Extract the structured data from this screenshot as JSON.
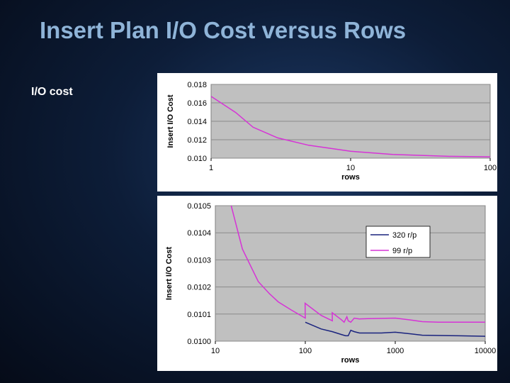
{
  "slide": {
    "title": "Insert Plan I/O Cost versus Rows",
    "bullet": "I/O cost"
  },
  "colors": {
    "plot_bg": "#c0c0c0",
    "series_320": "#1a237e",
    "series_99": "#d633d6",
    "title": "#8fb4d8"
  },
  "chart_data": [
    {
      "type": "line",
      "xscale": "log",
      "xlabel": "rows",
      "ylabel": "Insert I/O Cost",
      "xlim": [
        1,
        100
      ],
      "ylim": [
        0.01,
        0.018
      ],
      "xticks": [
        "1",
        "10",
        "100"
      ],
      "xtick_values": [
        1,
        10,
        100
      ],
      "yticks": [
        "0.010",
        "0.012",
        "0.014",
        "0.016",
        "0.018"
      ],
      "ytick_values": [
        0.01,
        0.012,
        0.014,
        0.016,
        0.018
      ],
      "grid": true,
      "legend": "none",
      "series": [
        {
          "color": "#d633d6",
          "x": [
            1,
            1.5,
            2,
            3,
            5,
            10,
            20,
            50,
            100
          ],
          "y": [
            0.0167,
            0.01495,
            0.01335,
            0.0122,
            0.0114,
            0.01075,
            0.0104,
            0.0102,
            0.01015
          ]
        }
      ]
    },
    {
      "type": "line",
      "xscale": "log",
      "xlabel": "rows",
      "ylabel": "Insert I/O Cost",
      "xlim": [
        10,
        10000
      ],
      "ylim": [
        0.01,
        0.0105
      ],
      "xticks": [
        "10",
        "100",
        "1000",
        "10000"
      ],
      "xtick_values": [
        10,
        100,
        1000,
        10000
      ],
      "yticks": [
        "0.0100",
        "0.0101",
        "0.0102",
        "0.0103",
        "0.0104",
        "0.0105"
      ],
      "ytick_values": [
        0.01,
        0.0101,
        0.0102,
        0.0103,
        0.0104,
        0.0105
      ],
      "grid": true,
      "legend": "top-right",
      "series": [
        {
          "name": "320 r/p",
          "color": "#1a237e",
          "x": [
            100,
            150,
            200,
            250,
            280,
            300,
            320,
            350,
            400,
            500,
            700,
            1000,
            1500,
            2000,
            3000,
            5000,
            10000
          ],
          "y": [
            0.01007,
            0.010045,
            0.010035,
            0.010025,
            0.01002,
            0.01002,
            0.01004,
            0.010035,
            0.01003,
            0.01003,
            0.01003,
            0.010033,
            0.010027,
            0.010022,
            0.010021,
            0.01002,
            0.010018
          ]
        },
        {
          "name": "99 r/p",
          "color": "#d633d6",
          "x": [
            15,
            20,
            30,
            40,
            50,
            70,
            100,
            99.5,
            150,
            200,
            199,
            250,
            270,
            290,
            300,
            320,
            350,
            400,
            500,
            700,
            1000,
            1500,
            2000,
            3000,
            5000,
            10000
          ],
          "y": [
            0.0105,
            0.01034,
            0.01022,
            0.010175,
            0.010145,
            0.010115,
            0.010085,
            0.01014,
            0.010095,
            0.010075,
            0.010105,
            0.01008,
            0.01007,
            0.01009,
            0.010075,
            0.01007,
            0.010085,
            0.010082,
            0.010083,
            0.010084,
            0.010085,
            0.010078,
            0.010072,
            0.01007,
            0.01007,
            0.01007
          ]
        }
      ]
    }
  ]
}
